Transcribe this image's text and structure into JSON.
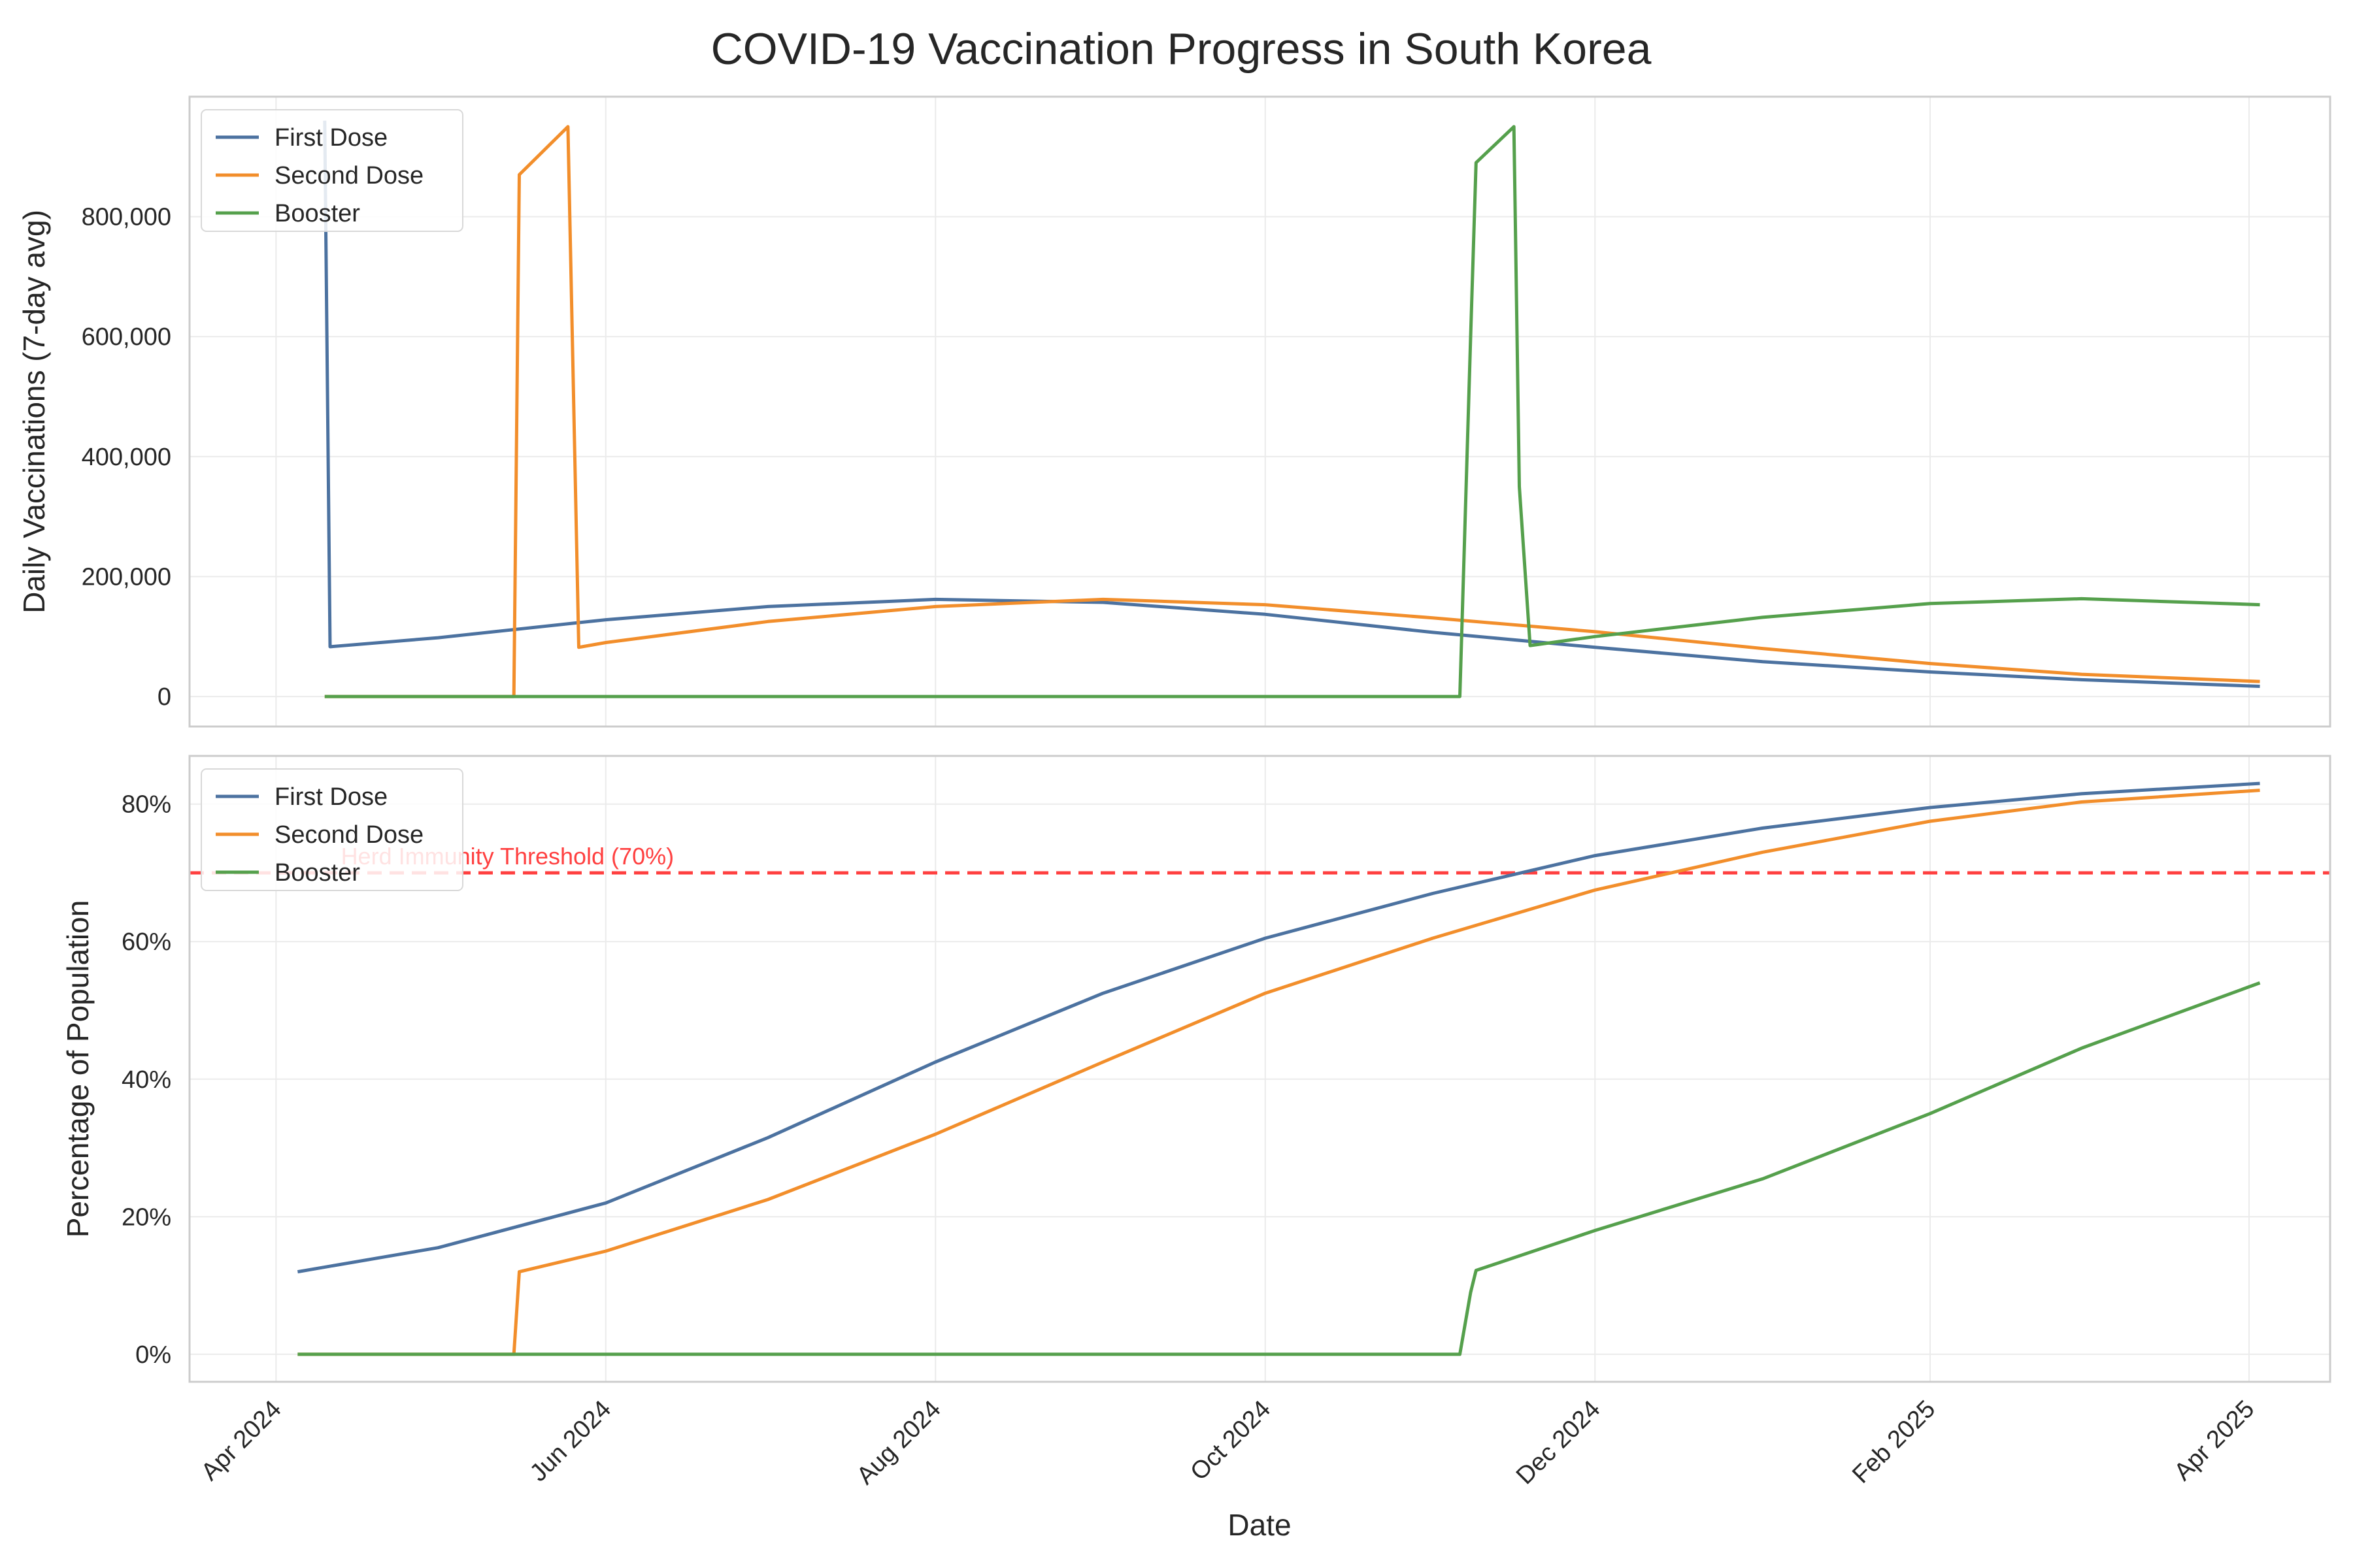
{
  "chart_data": {
    "type": "line",
    "title": "COVID-19 Vaccination Progress in South Korea",
    "xlabel": "Date",
    "x_ticks": [
      "Apr 2024",
      "Jun 2024",
      "Aug 2024",
      "Oct 2024",
      "Dec 2024",
      "Feb 2025",
      "Apr 2025"
    ],
    "x_tick_dates": [
      "2024-04-01",
      "2024-06-01",
      "2024-08-01",
      "2024-10-01",
      "2024-12-01",
      "2025-02-01",
      "2025-04-01"
    ],
    "xlim": [
      "2024-03-16",
      "2025-04-16"
    ],
    "grid": true,
    "colors": {
      "first": "#4c72a0",
      "second": "#f28e2b",
      "booster": "#55a04c",
      "threshold": "#ff4040"
    },
    "panels": [
      {
        "ylabel": "Daily Vaccinations (7-day avg)",
        "ylim": [
          -50000,
          1000000
        ],
        "yticks": [
          0,
          200000,
          400000,
          600000,
          800000
        ],
        "ytick_labels": [
          "0",
          "200,000",
          "400,000",
          "600,000",
          "800,000"
        ],
        "legend": "upper left",
        "series": [
          {
            "name": "First Dose",
            "key": "first",
            "points": [
              [
                "2024-04-10",
                960000
              ],
              [
                "2024-04-11",
                83000
              ],
              [
                "2024-05-01",
                98000
              ],
              [
                "2024-06-01",
                128000
              ],
              [
                "2024-07-01",
                150000
              ],
              [
                "2024-08-01",
                162000
              ],
              [
                "2024-09-01",
                157000
              ],
              [
                "2024-10-01",
                137000
              ],
              [
                "2024-11-01",
                107000
              ],
              [
                "2024-12-01",
                82000
              ],
              [
                "2025-01-01",
                58000
              ],
              [
                "2025-02-01",
                41000
              ],
              [
                "2025-03-01",
                28000
              ],
              [
                "2025-04-03",
                17000
              ]
            ]
          },
          {
            "name": "Second Dose",
            "key": "second",
            "points": [
              [
                "2024-04-10",
                0
              ],
              [
                "2024-05-15",
                0
              ],
              [
                "2024-05-16",
                870000
              ],
              [
                "2024-05-25",
                950000
              ],
              [
                "2024-05-27",
                82000
              ],
              [
                "2024-06-01",
                90000
              ],
              [
                "2024-07-01",
                125000
              ],
              [
                "2024-08-01",
                150000
              ],
              [
                "2024-09-01",
                162000
              ],
              [
                "2024-10-01",
                153000
              ],
              [
                "2024-11-01",
                131000
              ],
              [
                "2024-12-01",
                108000
              ],
              [
                "2025-01-01",
                80000
              ],
              [
                "2025-02-01",
                55000
              ],
              [
                "2025-03-01",
                37000
              ],
              [
                "2025-04-03",
                25000
              ]
            ]
          },
          {
            "name": "Booster",
            "key": "booster",
            "points": [
              [
                "2024-04-10",
                0
              ],
              [
                "2024-11-06",
                0
              ],
              [
                "2024-11-08",
                600000
              ],
              [
                "2024-11-09",
                890000
              ],
              [
                "2024-11-16",
                950000
              ],
              [
                "2024-11-17",
                350000
              ],
              [
                "2024-11-19",
                85000
              ],
              [
                "2024-12-01",
                100000
              ],
              [
                "2025-01-01",
                132000
              ],
              [
                "2025-02-01",
                155000
              ],
              [
                "2025-03-01",
                163000
              ],
              [
                "2025-04-03",
                153000
              ]
            ]
          }
        ]
      },
      {
        "ylabel": "Percentage of Population",
        "ylim": [
          -4,
          87
        ],
        "yticks": [
          0,
          20,
          40,
          60,
          80
        ],
        "ytick_labels": [
          "0%",
          "20%",
          "40%",
          "60%",
          "80%"
        ],
        "legend": "upper left",
        "threshold": {
          "value": 70,
          "label": "Herd Immunity Threshold (70%)"
        },
        "series": [
          {
            "name": "First Dose",
            "key": "first",
            "points": [
              [
                "2024-04-05",
                12
              ],
              [
                "2024-05-01",
                15.5
              ],
              [
                "2024-06-01",
                22
              ],
              [
                "2024-07-01",
                31.5
              ],
              [
                "2024-08-01",
                42.5
              ],
              [
                "2024-09-01",
                52.5
              ],
              [
                "2024-10-01",
                60.5
              ],
              [
                "2024-11-01",
                67
              ],
              [
                "2024-12-01",
                72.5
              ],
              [
                "2025-01-01",
                76.5
              ],
              [
                "2025-02-01",
                79.5
              ],
              [
                "2025-03-01",
                81.5
              ],
              [
                "2025-04-03",
                83
              ]
            ]
          },
          {
            "name": "Second Dose",
            "key": "second",
            "points": [
              [
                "2024-04-05",
                0
              ],
              [
                "2024-05-15",
                0
              ],
              [
                "2024-05-16",
                12
              ],
              [
                "2024-06-01",
                15
              ],
              [
                "2024-07-01",
                22.5
              ],
              [
                "2024-08-01",
                32
              ],
              [
                "2024-09-01",
                42.5
              ],
              [
                "2024-10-01",
                52.5
              ],
              [
                "2024-11-01",
                60.5
              ],
              [
                "2024-12-01",
                67.5
              ],
              [
                "2025-01-01",
                73
              ],
              [
                "2025-02-01",
                77.5
              ],
              [
                "2025-03-01",
                80.3
              ],
              [
                "2025-04-03",
                82
              ]
            ]
          },
          {
            "name": "Booster",
            "key": "booster",
            "points": [
              [
                "2024-04-05",
                0
              ],
              [
                "2024-11-06",
                0
              ],
              [
                "2024-11-08",
                9
              ],
              [
                "2024-11-09",
                12.2
              ],
              [
                "2024-12-01",
                18
              ],
              [
                "2025-01-01",
                25.5
              ],
              [
                "2025-02-01",
                35
              ],
              [
                "2025-03-01",
                44.5
              ],
              [
                "2025-04-03",
                54
              ]
            ]
          }
        ]
      }
    ]
  }
}
